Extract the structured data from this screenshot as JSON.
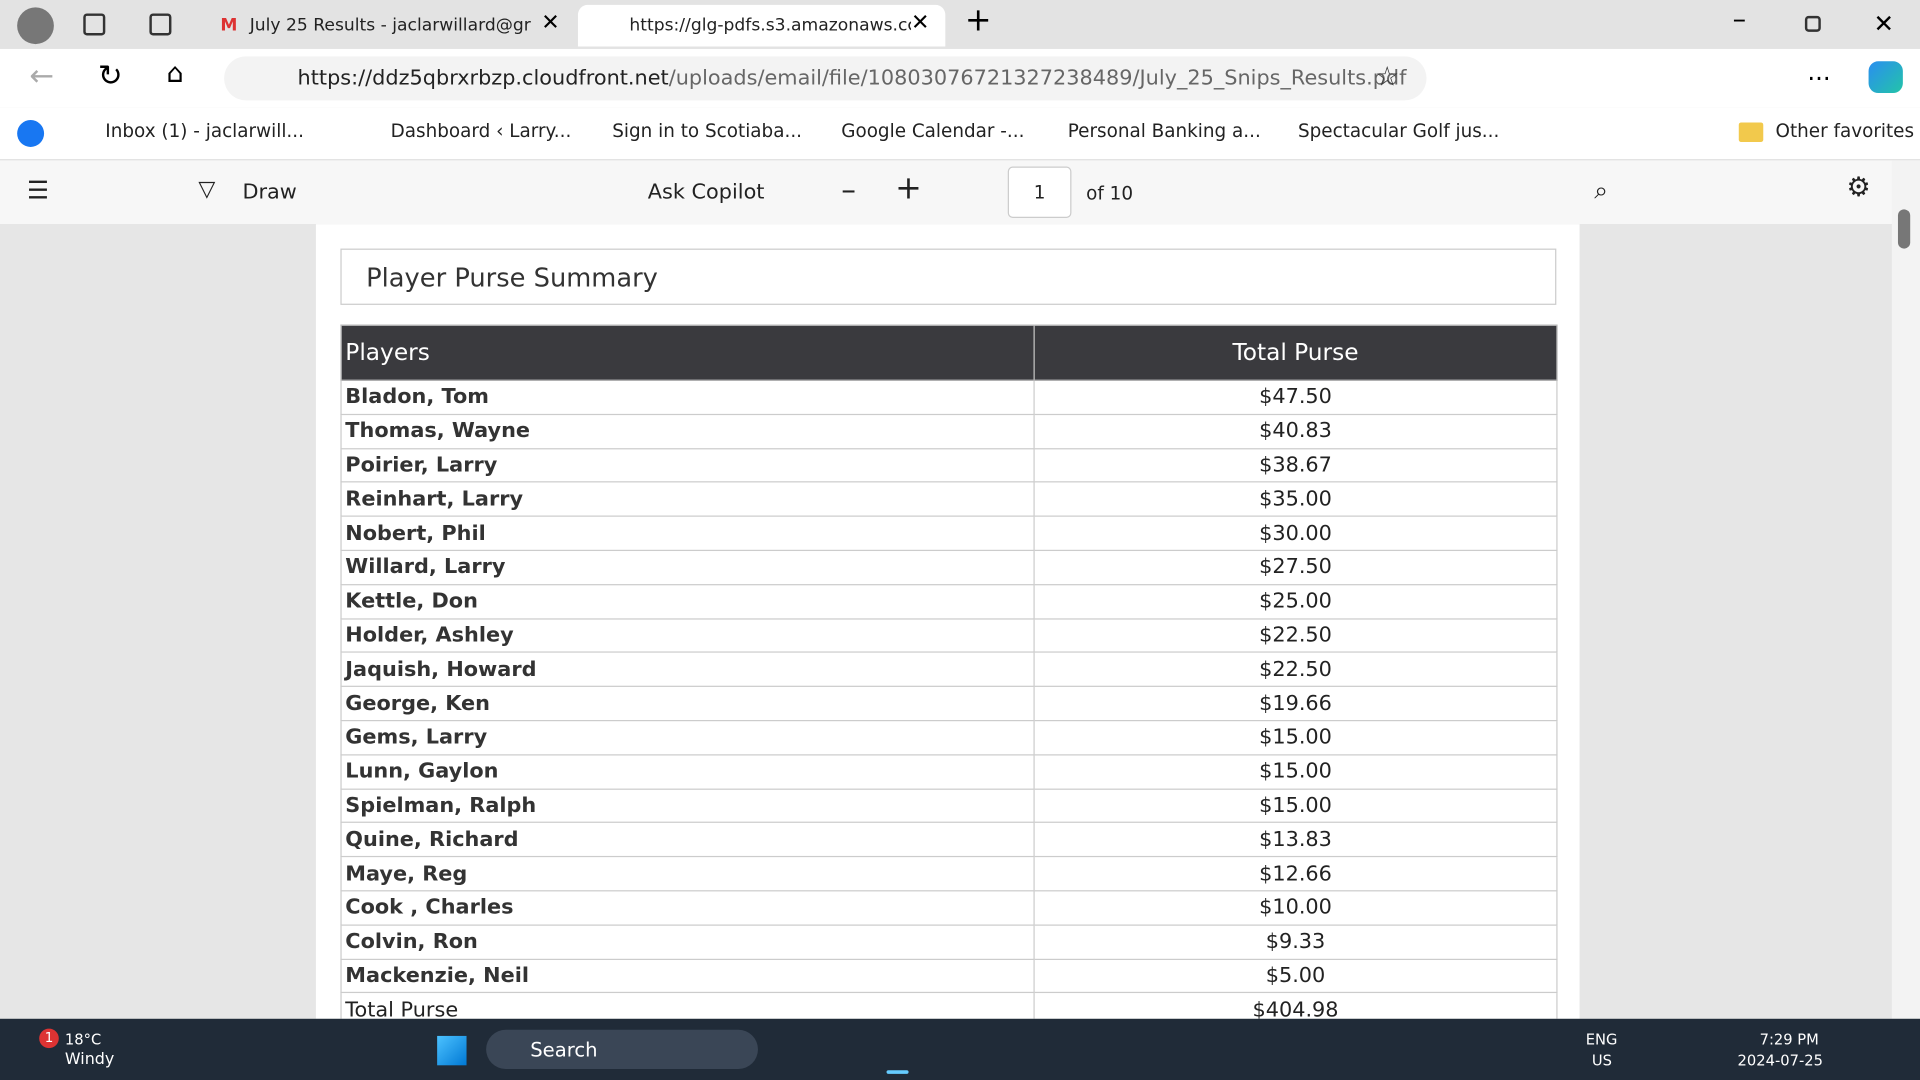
{
  "browser": {
    "tabs": [
      {
        "title": "July 25 Results - jaclarwillard@gr"
      },
      {
        "title": "https://glg-pdfs.s3.amazonaws.cc"
      }
    ],
    "address": {
      "host": "https://ddz5qbrxrbzp.cloudfront.net",
      "path": "/uploads/email/file/10803076721327238489/July_25_Snips_Results.pdf"
    },
    "bookmarks": [
      "Inbox (1) - jaclarwill...",
      "Dashboard ‹ Larry...",
      "Sign in to Scotiaba...",
      "Google Calendar -...",
      "Personal Banking a...",
      "Spectacular Golf jus..."
    ],
    "other_favorites": "Other favorites"
  },
  "pdf_toolbar": {
    "draw": "Draw",
    "ask_copilot": "Ask Copilot",
    "page": "1",
    "page_count": "of 10"
  },
  "document": {
    "title": "Player Purse Summary",
    "table": {
      "headers": [
        "Players",
        "Total Purse"
      ],
      "rows": [
        [
          "Bladon, Tom",
          "$47.50"
        ],
        [
          "Thomas, Wayne",
          "$40.83"
        ],
        [
          "Poirier, Larry",
          "$38.67"
        ],
        [
          "Reinhart, Larry",
          "$35.00"
        ],
        [
          "Nobert, Phil",
          "$30.00"
        ],
        [
          "Willard, Larry",
          "$27.50"
        ],
        [
          "Kettle, Don",
          "$25.00"
        ],
        [
          "Holder, Ashley",
          "$22.50"
        ],
        [
          "Jaquish, Howard",
          "$22.50"
        ],
        [
          "George, Ken",
          "$19.66"
        ],
        [
          "Gems, Larry",
          "$15.00"
        ],
        [
          "Lunn, Gaylon",
          "$15.00"
        ],
        [
          "Spielman, Ralph",
          "$15.00"
        ],
        [
          "Quine, Richard",
          "$13.83"
        ],
        [
          "Maye, Reg",
          "$12.66"
        ],
        [
          "Cook , Charles",
          "$10.00"
        ],
        [
          "Colvin, Ron",
          "$9.33"
        ],
        [
          "Mackenzie, Neil",
          "$5.00"
        ]
      ],
      "total": [
        "Total Purse",
        "$404.98"
      ]
    }
  },
  "taskbar": {
    "weather": {
      "badge": "1",
      "temp": "18°C",
      "condition": "Windy"
    },
    "search": "Search",
    "language": "ENG",
    "region": "US",
    "time": "7:29 PM",
    "date": "2024-07-25"
  }
}
